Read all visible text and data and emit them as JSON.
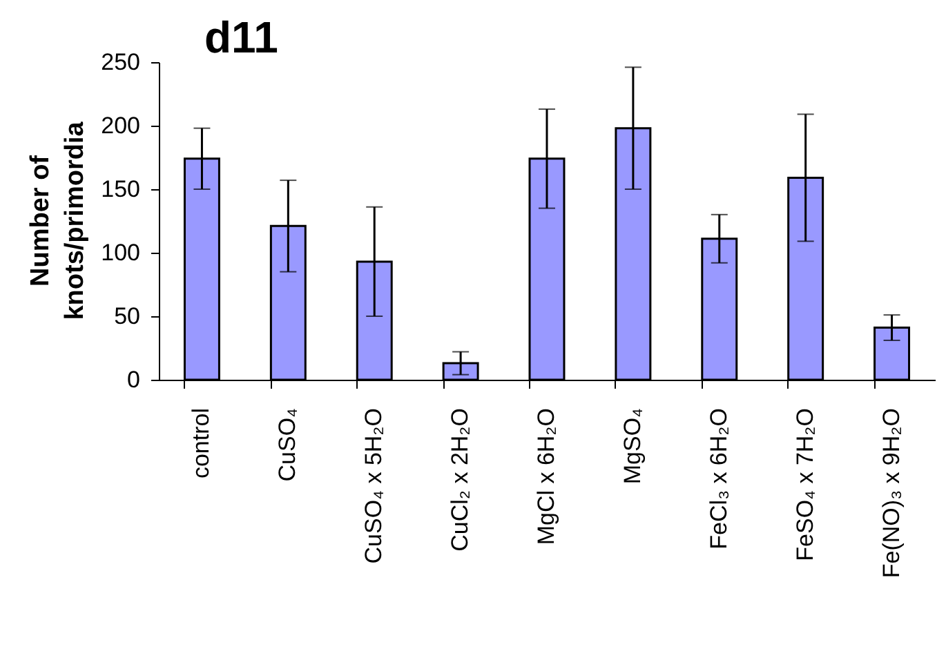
{
  "chart_data": {
    "type": "bar",
    "title": "d11",
    "ylabel": "Number of\nknots/primordia",
    "categories": [
      "control",
      "CuSO₄",
      "CuSO₄ x 5H₂O",
      "CuCl₂ x 2H₂O",
      "MgCl x 6H₂O",
      "MgSO₄",
      "FeCl₃ x 6H₂O",
      "FeSO₄ x 7H₂O",
      "Fe(NO)₃ x 9H₂O"
    ],
    "values": [
      174,
      121,
      93,
      13,
      174,
      198,
      111,
      159,
      41
    ],
    "errors": [
      24,
      36,
      43,
      9,
      39,
      48,
      19,
      50,
      10
    ],
    "color": "#9999ff",
    "ylim": [
      0,
      250
    ],
    "yticks": [
      0,
      50,
      100,
      150,
      200,
      250
    ],
    "grid": false
  }
}
